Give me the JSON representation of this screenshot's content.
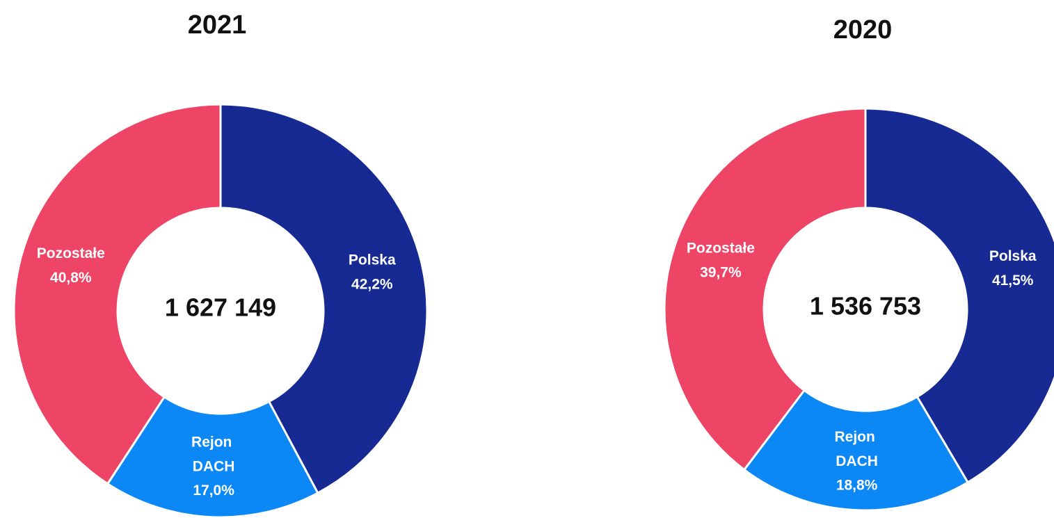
{
  "chart_data": [
    {
      "type": "pie",
      "title": "2021",
      "center_text": "1 627 149",
      "categories": [
        "Polska",
        "Rejon DACH",
        "Pozostałe"
      ],
      "values": [
        42.2,
        17.0,
        40.8
      ],
      "value_labels": [
        "42,2%",
        "17,0%",
        "40,8%"
      ],
      "colors": [
        "#172a93",
        "#0b88f5",
        "#ee4566"
      ]
    },
    {
      "type": "pie",
      "title": "2020",
      "center_text": "1 536 753",
      "categories": [
        "Polska",
        "Rejon DACH",
        "Pozostałe"
      ],
      "values": [
        41.5,
        18.8,
        39.7
      ],
      "value_labels": [
        "41,5%",
        "18,8%",
        "39,7%"
      ],
      "colors": [
        "#172a93",
        "#0b88f5",
        "#ee4566"
      ]
    }
  ]
}
